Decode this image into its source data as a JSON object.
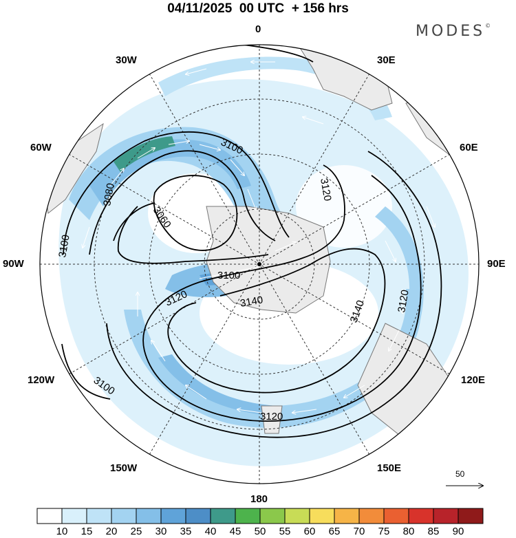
{
  "header": {
    "title": "04/11/2025  00 UTC  + 156 hrs",
    "brand": "MODES",
    "brand_mark": "©"
  },
  "map": {
    "projection": "south-polar stereographic",
    "variables": [
      "geopotential height (m)",
      "wind speed (shaded)",
      "wind vectors"
    ],
    "longitude_labels": {
      "lon_0": "0",
      "lon_30e": "30E",
      "lon_60e": "60E",
      "lon_90e": "90E",
      "lon_120e": "120E",
      "lon_150e": "150E",
      "lon_180": "180",
      "lon_150w": "150W",
      "lon_120w": "120W",
      "lon_90w": "90W",
      "lon_60w": "60W",
      "lon_30w": "30W"
    },
    "contour_labels": {
      "c3100_a": "3100",
      "c3080": "3080",
      "c3060": "3060",
      "c3100_b": "3100",
      "c3120_a": "3120",
      "c3120_b": "3120",
      "c3100_c": "3100",
      "c3140_a": "3140",
      "c3140_b": "3140",
      "c3120_c": "3120",
      "c3100_d": "3100",
      "c3120_d": "3120"
    },
    "reference_vector": "50"
  },
  "colorbar": {
    "labels": [
      "10",
      "15",
      "20",
      "25",
      "30",
      "35",
      "40",
      "45",
      "50",
      "55",
      "60",
      "65",
      "70",
      "75",
      "80",
      "85",
      "90"
    ],
    "colors": [
      "#ffffff",
      "#d9f0fb",
      "#bfe3f7",
      "#a3d3f1",
      "#84bfe8",
      "#5fa3d9",
      "#4d8ec7",
      "#3e9a8a",
      "#4db34c",
      "#8bc84b",
      "#c8dc56",
      "#f7dd5c",
      "#f6b447",
      "#f28c3a",
      "#ea6031",
      "#d8332b",
      "#b8232a",
      "#8f1a1a"
    ]
  }
}
